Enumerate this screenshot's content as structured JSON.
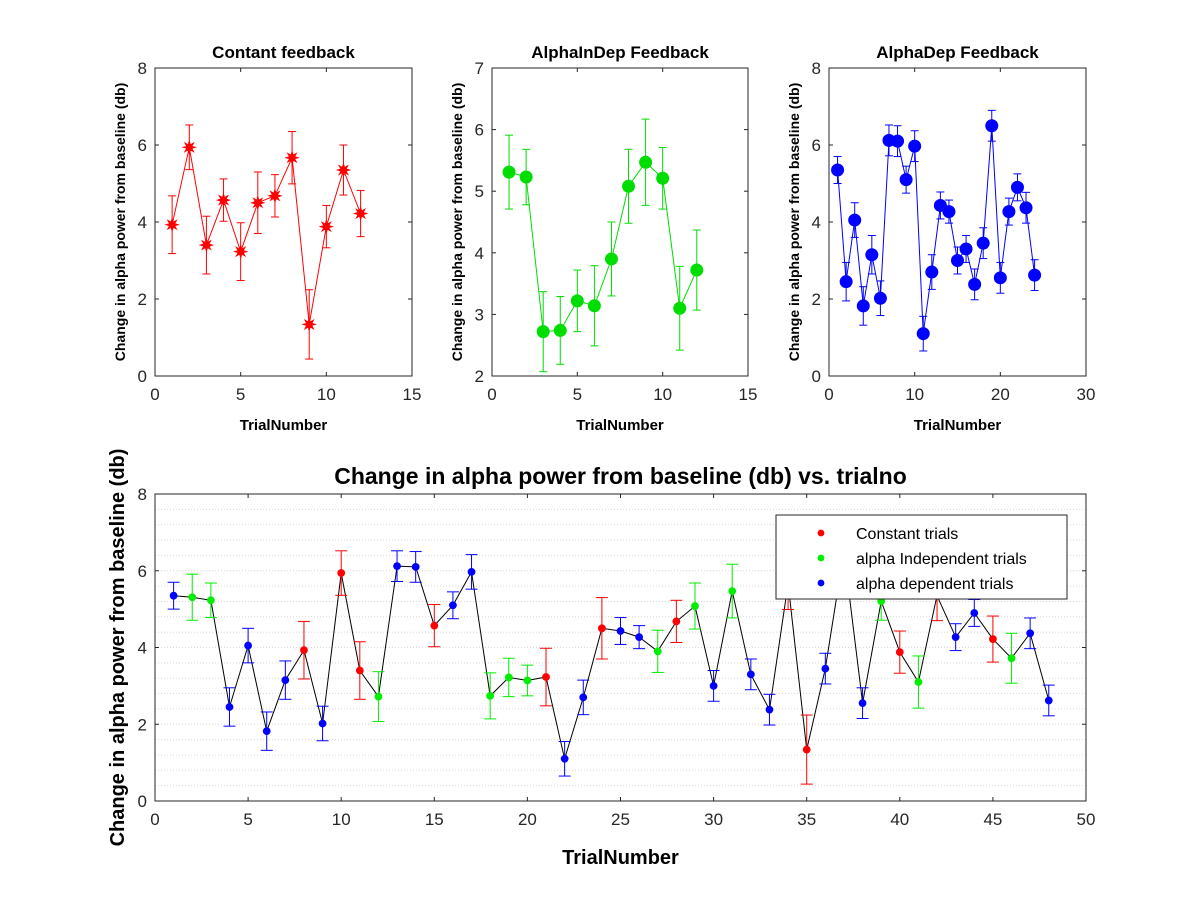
{
  "chart_data": [
    {
      "type": "line",
      "title": "Contant feedback",
      "xlabel": "TrialNumber",
      "ylabel": "Change in alpha power from baseline (db)",
      "xlim": [
        0,
        15
      ],
      "ylim": [
        0,
        8
      ],
      "xticks": [
        0,
        5,
        10,
        15
      ],
      "yticks": [
        0,
        2,
        4,
        6,
        8
      ],
      "marker": "star",
      "color": "#ff0000",
      "x": [
        1,
        2,
        3,
        4,
        5,
        6,
        7,
        8,
        9,
        10,
        11,
        12
      ],
      "y": [
        3.93,
        5.94,
        3.4,
        4.57,
        3.23,
        4.5,
        4.68,
        5.67,
        1.34,
        3.88,
        5.35,
        4.22
      ],
      "err": [
        0.75,
        0.58,
        0.75,
        0.55,
        0.75,
        0.8,
        0.55,
        0.68,
        0.9,
        0.55,
        0.65,
        0.6
      ]
    },
    {
      "type": "line",
      "title": "AlphaInDep Feedback",
      "xlabel": "TrialNumber",
      "ylabel": "Change in alpha power from baseline (db)",
      "xlim": [
        0,
        15
      ],
      "ylim": [
        2,
        7
      ],
      "xticks": [
        0,
        5,
        10,
        15
      ],
      "yticks": [
        2,
        3,
        4,
        5,
        6,
        7
      ],
      "marker": "circle",
      "color": "#00dd00",
      "x": [
        1,
        2,
        3,
        4,
        5,
        6,
        7,
        8,
        9,
        10,
        11,
        12
      ],
      "y": [
        5.31,
        5.23,
        2.72,
        2.74,
        3.22,
        3.14,
        3.9,
        5.08,
        5.47,
        5.21,
        3.1,
        3.72
      ],
      "err": [
        0.6,
        0.45,
        0.65,
        0.55,
        0.5,
        0.65,
        0.6,
        0.6,
        0.7,
        0.5,
        0.68,
        0.65
      ]
    },
    {
      "type": "line",
      "title": "AlphaDep Feedback",
      "xlabel": "TrialNumber",
      "ylabel": "Change in alpha power from baseline (db)",
      "xlim": [
        0,
        30
      ],
      "ylim": [
        0,
        8
      ],
      "xticks": [
        0,
        10,
        20,
        30
      ],
      "yticks": [
        0,
        2,
        4,
        6,
        8
      ],
      "marker": "circle",
      "color": "#0000ff",
      "x": [
        1,
        2,
        3,
        4,
        5,
        6,
        7,
        8,
        9,
        10,
        11,
        12,
        13,
        14,
        15,
        16,
        17,
        18,
        19,
        20,
        21,
        22,
        23,
        24
      ],
      "y": [
        5.35,
        2.45,
        4.05,
        1.82,
        3.15,
        2.02,
        6.12,
        6.1,
        5.1,
        5.97,
        1.1,
        2.7,
        4.43,
        4.27,
        3.0,
        3.3,
        2.38,
        3.45,
        6.5,
        2.55,
        4.27,
        4.9,
        4.37,
        2.62
      ],
      "err": [
        0.35,
        0.5,
        0.45,
        0.5,
        0.5,
        0.45,
        0.4,
        0.4,
        0.35,
        0.4,
        0.45,
        0.45,
        0.35,
        0.3,
        0.35,
        0.35,
        0.4,
        0.4,
        0.4,
        0.4,
        0.35,
        0.35,
        0.4,
        0.4
      ]
    },
    {
      "type": "line",
      "title": "Change in alpha power from baseline (db)    vs. trialno",
      "xlabel": "TrialNumber",
      "ylabel": "Change in alpha power from baseline (db)",
      "xlim": [
        0,
        50
      ],
      "ylim": [
        0,
        8
      ],
      "xticks": [
        0,
        5,
        10,
        15,
        20,
        25,
        30,
        35,
        40,
        45,
        50
      ],
      "yticks": [
        0,
        2,
        4,
        6,
        8
      ],
      "grid": "minor y dotted",
      "legend_position": "top-right",
      "line_color": "#000000",
      "series": [
        {
          "name": "Constant trials",
          "color": "#ff0000"
        },
        {
          "name": "alpha Independent trials",
          "color": "#00ee00"
        },
        {
          "name": "alpha dependent trials",
          "color": "#0000ff"
        }
      ],
      "x": [
        1,
        2,
        3,
        4,
        5,
        6,
        7,
        8,
        9,
        10,
        11,
        12,
        13,
        14,
        15,
        16,
        17,
        18,
        19,
        20,
        21,
        22,
        23,
        24,
        25,
        26,
        27,
        28,
        29,
        30,
        31,
        32,
        33,
        34,
        35,
        36,
        37,
        38,
        39,
        40,
        41,
        42,
        43,
        44,
        45,
        46,
        47,
        48
      ],
      "y": [
        5.35,
        5.31,
        5.23,
        2.45,
        4.05,
        1.82,
        3.15,
        3.93,
        2.02,
        5.94,
        3.4,
        2.72,
        6.12,
        6.1,
        4.57,
        5.1,
        5.97,
        2.74,
        3.22,
        3.14,
        3.23,
        1.1,
        2.7,
        4.5,
        4.43,
        4.27,
        3.9,
        4.68,
        5.08,
        3.0,
        5.47,
        3.3,
        2.38,
        5.67,
        1.34,
        3.45,
        6.5,
        2.55,
        5.21,
        3.88,
        3.1,
        5.35,
        4.27,
        4.9,
        4.22,
        3.72,
        4.37,
        2.62
      ],
      "group": [
        2,
        1,
        1,
        2,
        2,
        2,
        2,
        0,
        2,
        0,
        0,
        1,
        2,
        2,
        0,
        2,
        2,
        1,
        1,
        1,
        0,
        2,
        2,
        0,
        2,
        2,
        1,
        0,
        1,
        2,
        1,
        2,
        2,
        0,
        0,
        2,
        2,
        2,
        1,
        0,
        1,
        0,
        2,
        2,
        0,
        1,
        2,
        2
      ],
      "err": [
        0.35,
        0.6,
        0.45,
        0.5,
        0.45,
        0.5,
        0.5,
        0.75,
        0.45,
        0.58,
        0.75,
        0.65,
        0.4,
        0.4,
        0.55,
        0.35,
        0.45,
        0.6,
        0.5,
        0.4,
        0.75,
        0.45,
        0.45,
        0.8,
        0.35,
        0.3,
        0.55,
        0.55,
        0.6,
        0.4,
        0.7,
        0.4,
        0.4,
        0.68,
        0.9,
        0.4,
        0.4,
        0.4,
        0.5,
        0.55,
        0.68,
        0.65,
        0.35,
        0.35,
        0.6,
        0.65,
        0.4,
        0.4
      ]
    }
  ]
}
